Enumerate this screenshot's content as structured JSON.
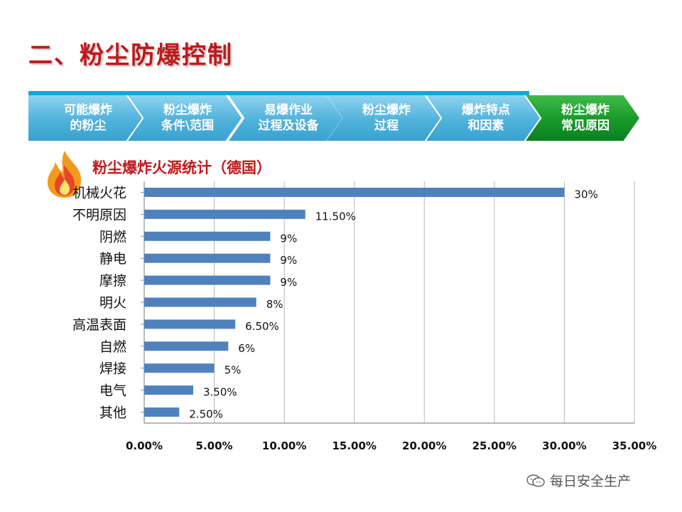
{
  "page": {
    "title": "二、粉尘防爆控制"
  },
  "nav": {
    "steps": [
      {
        "label": "可能爆炸\n的粉尘",
        "active": false
      },
      {
        "label": "粉尘爆炸\n条件\\范围",
        "active": false
      },
      {
        "label": "易爆作业\n过程及设备",
        "active": false
      },
      {
        "label": "粉尘爆炸\n过程",
        "active": false
      },
      {
        "label": "爆炸特点\n和因素",
        "active": false
      },
      {
        "label": "粉尘爆炸\n常见原因",
        "active": true
      }
    ]
  },
  "watermark": {
    "text": "每日安全生产"
  },
  "chart_data": {
    "type": "bar",
    "orientation": "horizontal",
    "title": "粉尘爆炸火源统计（德国）",
    "categories": [
      "机械火花",
      "不明原因",
      "阴燃",
      "静电",
      "摩擦",
      "明火",
      "高温表面",
      "自燃",
      "焊接",
      "电气",
      "其他"
    ],
    "values": [
      30,
      11.5,
      9,
      9,
      9,
      8,
      6.5,
      6,
      5,
      3.5,
      2.5
    ],
    "value_labels": [
      "30%",
      "11.50%",
      "9%",
      "9%",
      "9%",
      "8%",
      "6.50%",
      "6%",
      "5%",
      "3.50%",
      "2.50%"
    ],
    "xticks": [
      "0.00%",
      "5.00%",
      "10.00%",
      "15.00%",
      "20.00%",
      "25.00%",
      "30.00%",
      "35.00%"
    ],
    "xlim": [
      0,
      35
    ],
    "grid": true,
    "bar_color": "#4f81bd"
  }
}
